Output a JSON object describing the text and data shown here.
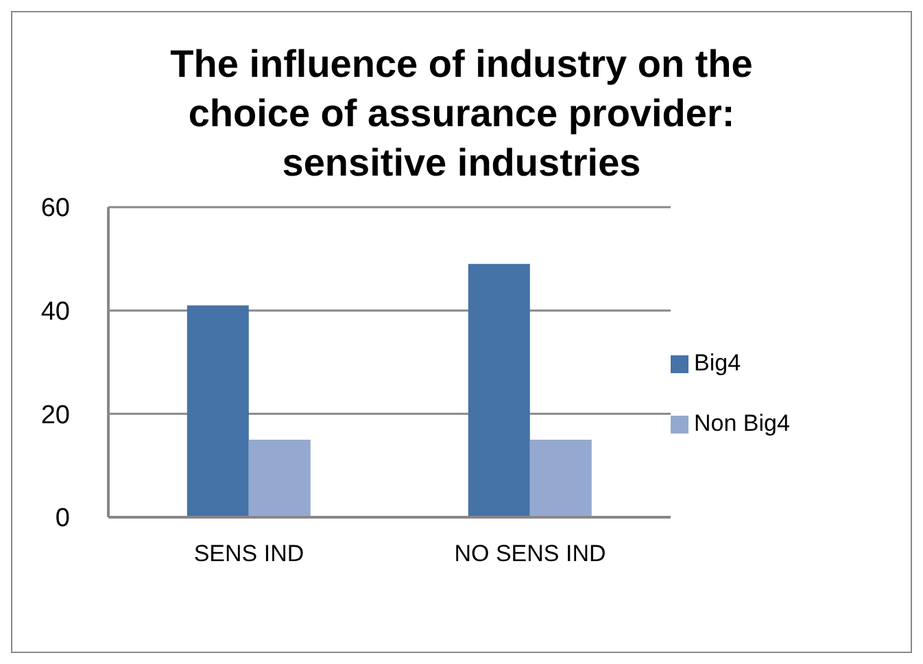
{
  "chart_data": {
    "type": "bar",
    "title": "The influence of industry on the choice of assurance provider: sensitive industries",
    "categories": [
      "SENS IND",
      "NO SENS IND"
    ],
    "series": [
      {
        "name": "Big4",
        "color": "#4572a7",
        "values": [
          41,
          49
        ]
      },
      {
        "name": "Non Big4",
        "color": "#95a9d0",
        "values": [
          15,
          15
        ]
      }
    ],
    "ylim": [
      0,
      60
    ],
    "yticks": [
      0,
      20,
      40,
      60
    ],
    "grid": "y",
    "legend": "right"
  }
}
